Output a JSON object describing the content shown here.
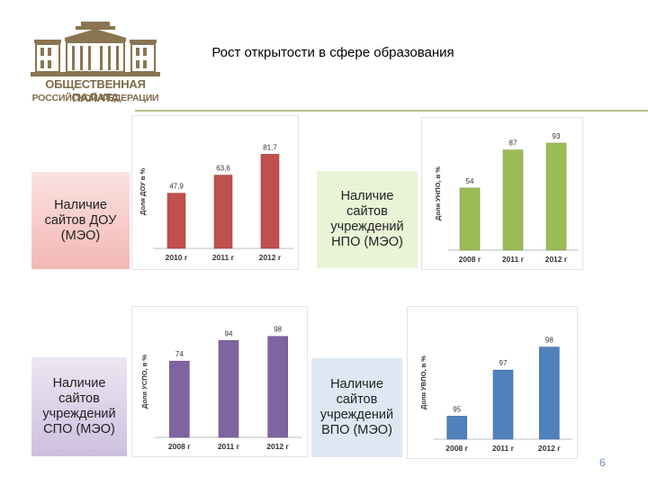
{
  "logo": {
    "line1": "ОБЩЕСТВЕННАЯ ПАЛАТА",
    "line2": "РОССИЙСКОЙ ФЕДЕРАЦИИ",
    "color": "#7f6a4a"
  },
  "slide": {
    "title": "Рост открытости в сфере образования",
    "page_number": "6"
  },
  "labels": [
    "Наличие\nсайтов ДОУ\n(МЭО)",
    "Наличие\nсайтов\nучреждений\nНПО (МЭО)",
    "Наличие\nсайтов\nучреждений\nСПО (МЭО)",
    "Наличие\nсайтов\nучреждений\nВПО (МЭО)"
  ],
  "chart_data": [
    {
      "type": "bar",
      "categories": [
        "2010 г",
        "2011 г",
        "2012 г"
      ],
      "values": [
        47.9,
        63.6,
        81.7
      ],
      "value_labels": [
        "47,9",
        "63,6",
        "81,7"
      ],
      "ylabel": "Доля ДОУ в %",
      "ylim": [
        0,
        100
      ],
      "color": "#c0504d"
    },
    {
      "type": "bar",
      "categories": [
        "2008 г",
        "2011 г",
        "2012 г"
      ],
      "values": [
        54,
        87,
        93
      ],
      "value_labels": [
        "54",
        "87",
        "93"
      ],
      "ylabel": "Доля УНПО, в %",
      "ylim": [
        0,
        100
      ],
      "color": "#9bbb59"
    },
    {
      "type": "bar",
      "categories": [
        "2008 г",
        "2011 г",
        "2012 г"
      ],
      "values": [
        74,
        94,
        98
      ],
      "value_labels": [
        "74",
        "94",
        "98"
      ],
      "ylabel": "Доля УСПО, в %",
      "ylim": [
        0,
        110
      ],
      "color": "#8064a2"
    },
    {
      "type": "bar",
      "categories": [
        "2008 г",
        "2011 г",
        "2012 г"
      ],
      "values": [
        95,
        97,
        98
      ],
      "value_labels": [
        "95",
        "97",
        "98"
      ],
      "ylabel": "Доля УВПО, в %",
      "ylim": [
        94,
        99
      ],
      "color": "#4f81bd"
    }
  ]
}
